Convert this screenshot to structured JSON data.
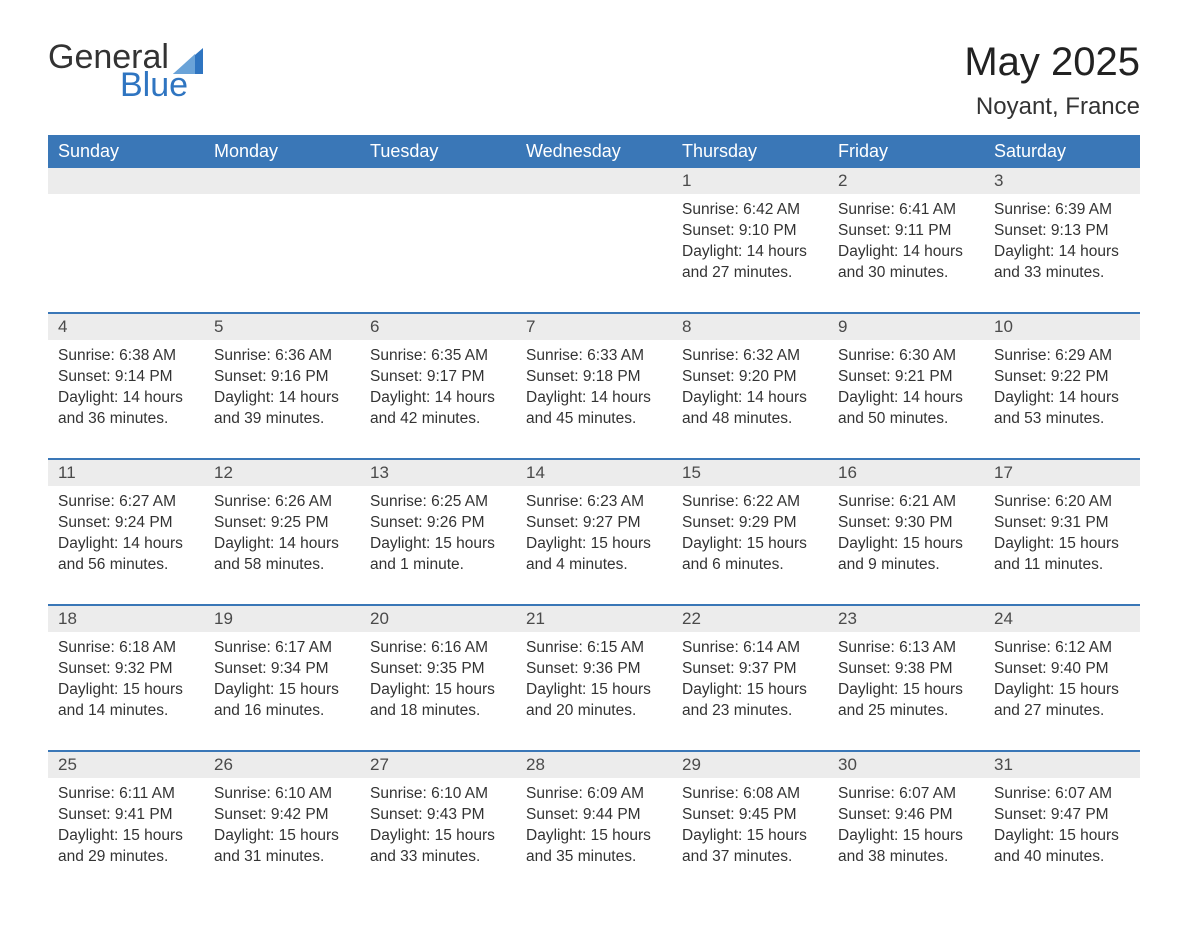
{
  "brand": {
    "word1": "General",
    "word2": "Blue",
    "icon_color": "#2f75c1"
  },
  "title": "May 2025",
  "location": "Noyant, France",
  "colors": {
    "header_bg": "#3a77b7",
    "header_text": "#ffffff",
    "daynum_bg": "#ececec",
    "text": "#333333",
    "rule": "#3a77b7"
  },
  "weekdays": [
    "Sunday",
    "Monday",
    "Tuesday",
    "Wednesday",
    "Thursday",
    "Friday",
    "Saturday"
  ],
  "weeks": [
    {
      "nums": [
        "",
        "",
        "",
        "",
        "1",
        "2",
        "3"
      ],
      "cells": [
        null,
        null,
        null,
        null,
        {
          "sunrise": "6:42 AM",
          "sunset": "9:10 PM",
          "day_h": "14",
          "day_m": "27"
        },
        {
          "sunrise": "6:41 AM",
          "sunset": "9:11 PM",
          "day_h": "14",
          "day_m": "30"
        },
        {
          "sunrise": "6:39 AM",
          "sunset": "9:13 PM",
          "day_h": "14",
          "day_m": "33"
        }
      ]
    },
    {
      "nums": [
        "4",
        "5",
        "6",
        "7",
        "8",
        "9",
        "10"
      ],
      "cells": [
        {
          "sunrise": "6:38 AM",
          "sunset": "9:14 PM",
          "day_h": "14",
          "day_m": "36"
        },
        {
          "sunrise": "6:36 AM",
          "sunset": "9:16 PM",
          "day_h": "14",
          "day_m": "39"
        },
        {
          "sunrise": "6:35 AM",
          "sunset": "9:17 PM",
          "day_h": "14",
          "day_m": "42"
        },
        {
          "sunrise": "6:33 AM",
          "sunset": "9:18 PM",
          "day_h": "14",
          "day_m": "45"
        },
        {
          "sunrise": "6:32 AM",
          "sunset": "9:20 PM",
          "day_h": "14",
          "day_m": "48"
        },
        {
          "sunrise": "6:30 AM",
          "sunset": "9:21 PM",
          "day_h": "14",
          "day_m": "50"
        },
        {
          "sunrise": "6:29 AM",
          "sunset": "9:22 PM",
          "day_h": "14",
          "day_m": "53"
        }
      ]
    },
    {
      "nums": [
        "11",
        "12",
        "13",
        "14",
        "15",
        "16",
        "17"
      ],
      "cells": [
        {
          "sunrise": "6:27 AM",
          "sunset": "9:24 PM",
          "day_h": "14",
          "day_m": "56"
        },
        {
          "sunrise": "6:26 AM",
          "sunset": "9:25 PM",
          "day_h": "14",
          "day_m": "58"
        },
        {
          "sunrise": "6:25 AM",
          "sunset": "9:26 PM",
          "day_h": "15",
          "day_m": "1",
          "singular": true
        },
        {
          "sunrise": "6:23 AM",
          "sunset": "9:27 PM",
          "day_h": "15",
          "day_m": "4"
        },
        {
          "sunrise": "6:22 AM",
          "sunset": "9:29 PM",
          "day_h": "15",
          "day_m": "6"
        },
        {
          "sunrise": "6:21 AM",
          "sunset": "9:30 PM",
          "day_h": "15",
          "day_m": "9"
        },
        {
          "sunrise": "6:20 AM",
          "sunset": "9:31 PM",
          "day_h": "15",
          "day_m": "11"
        }
      ]
    },
    {
      "nums": [
        "18",
        "19",
        "20",
        "21",
        "22",
        "23",
        "24"
      ],
      "cells": [
        {
          "sunrise": "6:18 AM",
          "sunset": "9:32 PM",
          "day_h": "15",
          "day_m": "14"
        },
        {
          "sunrise": "6:17 AM",
          "sunset": "9:34 PM",
          "day_h": "15",
          "day_m": "16"
        },
        {
          "sunrise": "6:16 AM",
          "sunset": "9:35 PM",
          "day_h": "15",
          "day_m": "18"
        },
        {
          "sunrise": "6:15 AM",
          "sunset": "9:36 PM",
          "day_h": "15",
          "day_m": "20"
        },
        {
          "sunrise": "6:14 AM",
          "sunset": "9:37 PM",
          "day_h": "15",
          "day_m": "23"
        },
        {
          "sunrise": "6:13 AM",
          "sunset": "9:38 PM",
          "day_h": "15",
          "day_m": "25"
        },
        {
          "sunrise": "6:12 AM",
          "sunset": "9:40 PM",
          "day_h": "15",
          "day_m": "27"
        }
      ]
    },
    {
      "nums": [
        "25",
        "26",
        "27",
        "28",
        "29",
        "30",
        "31"
      ],
      "cells": [
        {
          "sunrise": "6:11 AM",
          "sunset": "9:41 PM",
          "day_h": "15",
          "day_m": "29"
        },
        {
          "sunrise": "6:10 AM",
          "sunset": "9:42 PM",
          "day_h": "15",
          "day_m": "31"
        },
        {
          "sunrise": "6:10 AM",
          "sunset": "9:43 PM",
          "day_h": "15",
          "day_m": "33"
        },
        {
          "sunrise": "6:09 AM",
          "sunset": "9:44 PM",
          "day_h": "15",
          "day_m": "35"
        },
        {
          "sunrise": "6:08 AM",
          "sunset": "9:45 PM",
          "day_h": "15",
          "day_m": "37"
        },
        {
          "sunrise": "6:07 AM",
          "sunset": "9:46 PM",
          "day_h": "15",
          "day_m": "38"
        },
        {
          "sunrise": "6:07 AM",
          "sunset": "9:47 PM",
          "day_h": "15",
          "day_m": "40"
        }
      ]
    }
  ],
  "labels": {
    "sunrise": "Sunrise: ",
    "sunset": "Sunset: ",
    "daylight_prefix": "Daylight: ",
    "hours_word": " hours and ",
    "minutes_word": " minutes.",
    "minute_word": " minute."
  }
}
